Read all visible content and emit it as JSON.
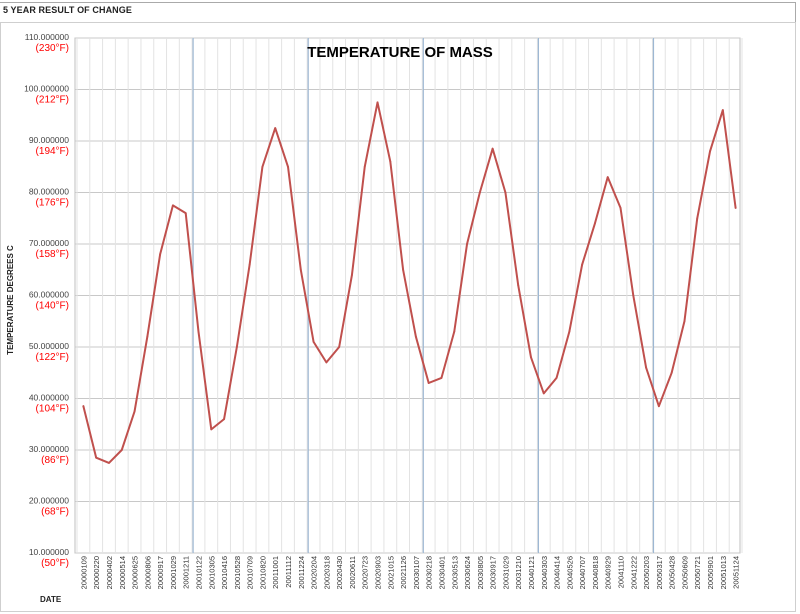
{
  "page": {
    "header_title": "5 YEAR RESULT OF CHANGE"
  },
  "chart_data": {
    "type": "line",
    "title": "TEMPERATURE OF MASS",
    "ylabel": "TEMPERATURE DEGREES C",
    "xlabel": "DATE",
    "ylim": [
      10,
      110
    ],
    "y_ticks": [
      {
        "value": 110,
        "label": "110.000000",
        "f_label": "(230°F)"
      },
      {
        "value": 100,
        "label": "100.000000",
        "f_label": "(212°F)"
      },
      {
        "value": 90,
        "label": "90.000000",
        "f_label": "(194°F)"
      },
      {
        "value": 80,
        "label": "80.000000",
        "f_label": "(176°F)"
      },
      {
        "value": 70,
        "label": "70.000000",
        "f_label": "(158°F)"
      },
      {
        "value": 60,
        "label": "60.000000",
        "f_label": "(140°F)"
      },
      {
        "value": 50,
        "label": "50.000000",
        "f_label": "(122°F)"
      },
      {
        "value": 40,
        "label": "40.000000",
        "f_label": "(104°F)"
      },
      {
        "value": 30,
        "label": "30.000000",
        "f_label": "(86°F)"
      },
      {
        "value": 20,
        "label": "20.000000",
        "f_label": "(68°F)"
      },
      {
        "value": 10,
        "label": "10.000000",
        "f_label": "(50°F)"
      }
    ],
    "x_tick_labels": [
      "20000109",
      "20000220",
      "20000402",
      "20000514",
      "20000625",
      "20000806",
      "20000917",
      "20001029",
      "20001211",
      "20010122",
      "20010305",
      "20010416",
      "20010528",
      "20010709",
      "20010820",
      "20011001",
      "20011112",
      "20011224",
      "20020204",
      "20020318",
      "20020430",
      "20020611",
      "20020723",
      "20020903",
      "20021015",
      "20021126",
      "20030107",
      "20030218",
      "20030401",
      "20030513",
      "20030624",
      "20030805",
      "20030917",
      "20031029",
      "20031210",
      "20040121",
      "20040303",
      "20040414",
      "20040526",
      "20040707",
      "20040818",
      "20040929",
      "20041110",
      "20041222",
      "20050203",
      "20050317",
      "20050428",
      "20050609",
      "20050721",
      "20050901",
      "20051013",
      "20051124"
    ],
    "year_separators_after_tick": [
      8,
      17,
      26,
      35,
      44
    ],
    "grid": true,
    "line_color": "#c0504d",
    "title_color": "#000000",
    "f_label_color": "#ff0000",
    "series": [
      {
        "x": [
          "20000109",
          "20000220",
          "20000402",
          "20000514",
          "20000625",
          "20000806",
          "20000917",
          "20001029",
          "20001211",
          "20010122",
          "20010305",
          "20010416",
          "20010528",
          "20010709",
          "20010820",
          "20011001",
          "20011112",
          "20011224",
          "20020204",
          "20020318",
          "20020430",
          "20020611",
          "20020723",
          "20020903",
          "20021015",
          "20021126",
          "20030107",
          "20030218",
          "20030401",
          "20030513",
          "20030624",
          "20030805",
          "20030917",
          "20031029",
          "20031210",
          "20040121",
          "20040303",
          "20040414",
          "20040526",
          "20040707",
          "20040818",
          "20040929",
          "20041110",
          "20041222",
          "20050203",
          "20050317",
          "20050428",
          "20050609",
          "20050721",
          "20050901",
          "20051013",
          "20051124"
        ],
        "values": [
          38.5,
          28.5,
          27.5,
          30,
          37.5,
          52,
          68,
          77.5,
          76,
          53,
          34,
          36,
          50,
          66,
          85,
          92.5,
          85,
          65,
          51,
          47,
          50,
          64,
          85,
          97.5,
          86,
          65,
          52,
          43,
          44,
          53,
          70,
          80,
          88.5,
          80,
          62,
          48,
          41,
          44,
          53,
          66,
          74,
          83,
          77,
          60,
          46,
          38.5,
          45,
          55,
          75,
          88,
          96,
          77
        ]
      }
    ]
  }
}
